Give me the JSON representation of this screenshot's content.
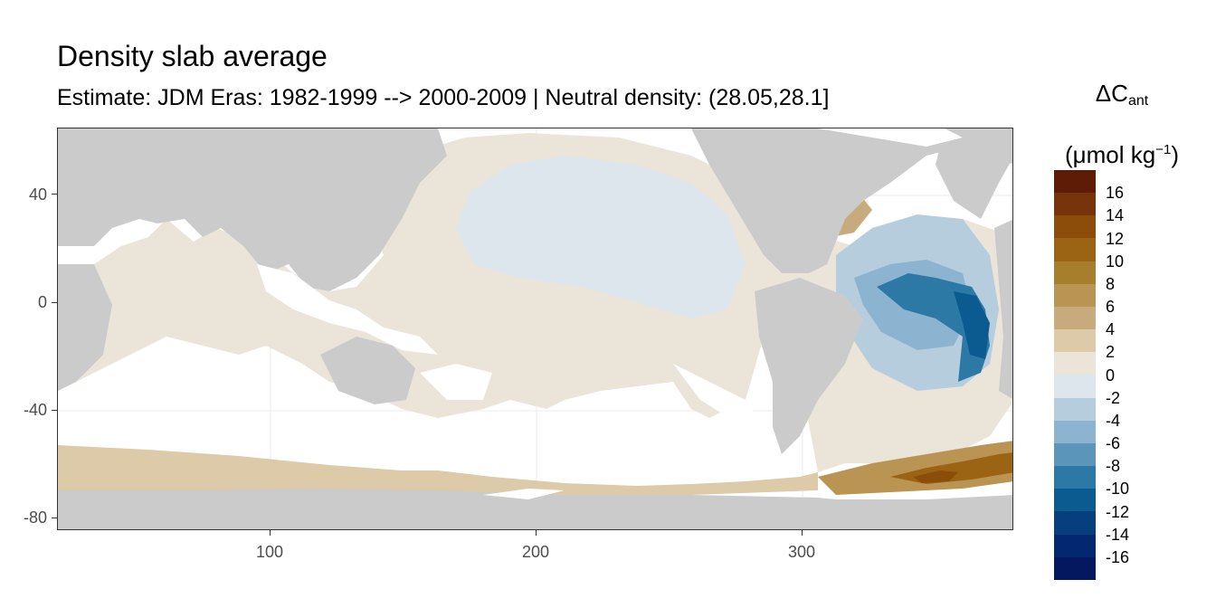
{
  "title": "Density slab average",
  "subtitle": "Estimate: JDM Eras: 1982-1999 --> 2000-2009 | Neutral density: (28.05,28.1]",
  "legend": {
    "title_main": "ΔC",
    "title_sub": "ant",
    "title_unit_prefix": "(μmol kg",
    "title_unit_sup": "−1",
    "title_unit_suffix": ")",
    "bins": [
      {
        "label": "16",
        "color": "#5e1b05"
      },
      {
        "label": "14",
        "color": "#77330a"
      },
      {
        "label": "12",
        "color": "#8c4d0b"
      },
      {
        "label": "10",
        "color": "#9b6414"
      },
      {
        "label": "8",
        "color": "#a77f2c"
      },
      {
        "label": "6",
        "color": "#b99453"
      },
      {
        "label": "4",
        "color": "#c8ab7c"
      },
      {
        "label": "2",
        "color": "#dccaa8"
      },
      {
        "label": "0",
        "color": "#ebe4d8"
      },
      {
        "label": "-2",
        "color": "#dde6ec"
      },
      {
        "label": "-4",
        "color": "#b6cddd"
      },
      {
        "label": "-6",
        "color": "#8cb3cf"
      },
      {
        "label": "-8",
        "color": "#5b96ba"
      },
      {
        "label": "-10",
        "color": "#2d79a6"
      },
      {
        "label": "-12",
        "color": "#0b5b91"
      },
      {
        "label": "-14",
        "color": "#063f7d"
      },
      {
        "label": "-16",
        "color": "#032770"
      },
      {
        "label": "",
        "color": "#031860"
      }
    ]
  },
  "map_data": {
    "type": "map",
    "xlim": [
      20,
      380
    ],
    "ylim": [
      -85,
      65
    ],
    "x_ticks": [
      100,
      200,
      300
    ],
    "y_ticks": [
      40,
      0,
      -40,
      -80
    ],
    "land_color": "#cbcbcb",
    "nodata_color": "#ffffff",
    "regions": [
      {
        "name": "southern-ocean-band",
        "value": 3
      },
      {
        "name": "north-pacific",
        "value": -1
      },
      {
        "name": "north-atlantic-subtropics",
        "value": -3
      },
      {
        "name": "north-atlantic-east",
        "value": -9
      },
      {
        "name": "labrador-sea",
        "value": 5
      },
      {
        "name": "weddell-sea",
        "value": 9
      },
      {
        "name": "indian-ocean",
        "value": 1
      },
      {
        "name": "south-pacific",
        "value": 1
      }
    ]
  }
}
